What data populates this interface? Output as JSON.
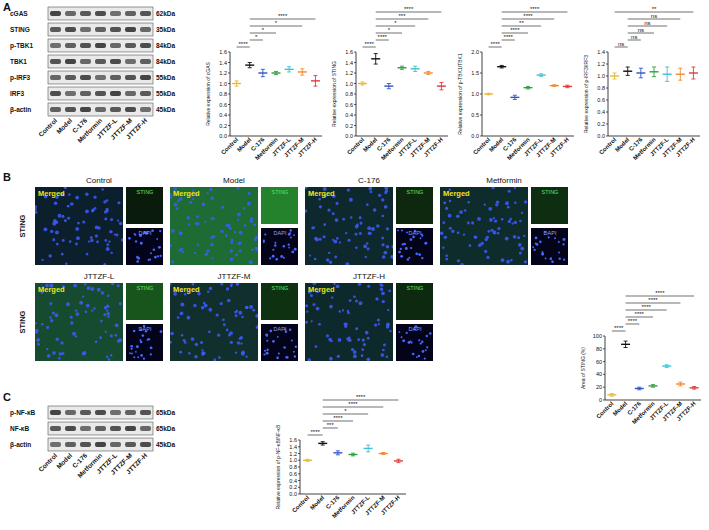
{
  "figure": {
    "panel_labels": [
      "A",
      "B",
      "C"
    ]
  },
  "blot_a": {
    "proteins": [
      "cGAS",
      "STING",
      "p-TBK1",
      "TBK1",
      "p-IRF3",
      "IRF3",
      "β-actin"
    ],
    "sizes": [
      "62kDa",
      "35kDa",
      "84kDa",
      "84kDa",
      "55kDa",
      "55kDa",
      "45kDa"
    ],
    "lanes": [
      "Control",
      "Model",
      "C-176",
      "Metformin",
      "JTTZF-L",
      "JTTZF-M",
      "JTTZF-H"
    ]
  },
  "blot_c": {
    "proteins": [
      "p-NF-κB",
      "NF-κB",
      "β-actin"
    ],
    "sizes": [
      "65kDa",
      "65kDa",
      "45kDa"
    ],
    "lanes": [
      "Control",
      "Model",
      "C-176",
      "Metformin",
      "JTTZF-L",
      "JTTZF-M",
      "JTTZF-H"
    ]
  },
  "images": {
    "row_label": "STING",
    "merged_label": "Merged",
    "channel_labels": [
      "STING",
      "DAPI"
    ],
    "groups": [
      "Control",
      "Model",
      "C-176",
      "Metformin",
      "JTTZF-L",
      "JTTZF-M",
      "JTTZF-H"
    ]
  },
  "chart_data": [
    {
      "type": "dot",
      "y_label": "Relative expression of cGAS",
      "categories": [
        "Control",
        "Model",
        "C-176",
        "Metformin",
        "JTTZF-L",
        "JTTZF-M",
        "JTTZF-H"
      ],
      "values": [
        1.0,
        1.35,
        1.2,
        1.2,
        1.27,
        1.22,
        1.05
      ],
      "errors": [
        0.05,
        0.05,
        0.07,
        0.03,
        0.05,
        0.06,
        0.1
      ],
      "colors": [
        "#e8b83a",
        "#111111",
        "#2f55c8",
        "#2e9e3e",
        "#3ec1d3",
        "#f08a30",
        "#e03a3a"
      ],
      "ylim": [
        0,
        1.6
      ],
      "yticks": [
        {
          "value": 0,
          "label": "0.0"
        },
        0.2,
        0.4,
        0.6,
        0.8,
        {
          "value": 1,
          "label": "1.0"
        },
        1.2,
        1.4,
        1.6
      ],
      "annotations": [
        {
          "from": "Control",
          "to": "Model",
          "label": "****"
        },
        {
          "from": "Model",
          "to": "C-176",
          "label": "*"
        },
        {
          "from": "Model",
          "to": "Metformin",
          "label": "*"
        },
        {
          "from": "Model",
          "to": "JTTZF-M",
          "label": "*"
        },
        {
          "from": "Model",
          "to": "JTTZF-H",
          "label": "****"
        }
      ]
    },
    {
      "type": "dot",
      "y_label": "Relative expression of STING",
      "categories": [
        "Control",
        "Model",
        "C-176",
        "Metformin",
        "JTTZF-L",
        "JTTZF-M",
        "JTTZF-H"
      ],
      "values": [
        1.0,
        1.47,
        0.95,
        1.3,
        1.28,
        1.2,
        0.95
      ],
      "errors": [
        0.03,
        0.1,
        0.05,
        0.03,
        0.05,
        0.03,
        0.07
      ],
      "colors": [
        "#e8b83a",
        "#111111",
        "#2f55c8",
        "#2e9e3e",
        "#3ec1d3",
        "#f08a30",
        "#e03a3a"
      ],
      "ylim": [
        0,
        1.6
      ],
      "yticks": [
        {
          "value": 0,
          "label": "0.0"
        },
        0.2,
        0.4,
        0.6,
        0.8,
        {
          "value": 1,
          "label": "1.0"
        },
        1.2,
        1.4,
        1.6
      ],
      "annotations": [
        {
          "from": "Control",
          "to": "Model",
          "label": "****"
        },
        {
          "from": "Model",
          "to": "C-176",
          "label": "****"
        },
        {
          "from": "Model",
          "to": "Metformin",
          "label": "*"
        },
        {
          "from": "Model",
          "to": "JTTZF-L",
          "label": "*"
        },
        {
          "from": "Model",
          "to": "JTTZF-M",
          "label": "***"
        },
        {
          "from": "Model",
          "to": "JTTZF-H",
          "label": "****"
        }
      ]
    },
    {
      "type": "dot",
      "y_label": "Relative expression of p-TBK1/TBK1",
      "categories": [
        "Control",
        "Model",
        "C-176",
        "Metformin",
        "JTTZF-L",
        "JTTZF-M",
        "JTTZF-H"
      ],
      "values": [
        1.0,
        1.65,
        0.92,
        1.15,
        1.45,
        1.2,
        1.18
      ],
      "errors": [
        0.02,
        0.03,
        0.05,
        0.03,
        0.03,
        0.02,
        0.03
      ],
      "colors": [
        "#e8b83a",
        "#111111",
        "#2f55c8",
        "#2e9e3e",
        "#3ec1d3",
        "#f08a30",
        "#e03a3a"
      ],
      "ylim": [
        0,
        2
      ],
      "yticks": [
        {
          "value": 0,
          "label": "0.0"
        },
        0.5,
        {
          "value": 1,
          "label": "1.0"
        },
        1.5,
        {
          "value": 2,
          "label": "2.0"
        }
      ],
      "annotations": [
        {
          "from": "Control",
          "to": "Model",
          "label": "****"
        },
        {
          "from": "Model",
          "to": "C-176",
          "label": "****"
        },
        {
          "from": "Model",
          "to": "Metformin",
          "label": "****"
        },
        {
          "from": "Model",
          "to": "JTTZF-L",
          "label": "**"
        },
        {
          "from": "Model",
          "to": "JTTZF-M",
          "label": "****"
        },
        {
          "from": "Model",
          "to": "JTTZF-H",
          "label": "****"
        }
      ]
    },
    {
      "type": "dot",
      "y_label": "Relative expression of p-IRF3/IRF3",
      "categories": [
        "Control",
        "Model",
        "C-176",
        "Metformin",
        "JTTZF-L",
        "JTTZF-M",
        "JTTZF-H"
      ],
      "values": [
        1.0,
        1.08,
        1.05,
        1.07,
        1.03,
        1.03,
        1.05
      ],
      "errors": [
        0.05,
        0.07,
        0.08,
        0.08,
        0.12,
        0.1,
        0.1
      ],
      "colors": [
        "#e8b83a",
        "#111111",
        "#2f55c8",
        "#2e9e3e",
        "#3ec1d3",
        "#f08a30",
        "#e03a3a"
      ],
      "ylim": [
        0,
        1.4
      ],
      "yticks": [
        {
          "value": 0,
          "label": "0.0"
        },
        0.2,
        0.4,
        0.6,
        0.8,
        {
          "value": 1,
          "label": "1.0"
        },
        1.2,
        1.4
      ],
      "annotations": [
        {
          "from": "Control",
          "to": "Model",
          "label": "ns"
        },
        {
          "from": "Model",
          "to": "C-176",
          "label": "ns"
        },
        {
          "from": "Model",
          "to": "Metformin",
          "label": "ns"
        },
        {
          "from": "Model",
          "to": "JTTZF-L",
          "label": "ns"
        },
        {
          "from": "Model",
          "to": "JTTZF-M",
          "label": "ns"
        },
        {
          "from": "Control",
          "to": "JTTZF-H",
          "label": "**"
        }
      ]
    },
    {
      "type": "dot",
      "y_label": "Area of STING (%)",
      "categories": [
        "Control",
        "Model",
        "C-176",
        "Metformin",
        "JTTZF-L",
        "JTTZF-M",
        "JTTZF-H"
      ],
      "values": [
        8,
        87,
        18,
        22,
        53,
        25,
        19
      ],
      "errors": [
        2,
        5,
        2,
        2,
        2,
        3,
        2
      ],
      "colors": [
        "#e8b83a",
        "#111111",
        "#2f55c8",
        "#2e9e3e",
        "#3ec1d3",
        "#f08a30",
        "#e03a3a"
      ],
      "ylim": [
        0,
        100
      ],
      "yticks": [
        0,
        20,
        40,
        60,
        80,
        100
      ],
      "annotations": [
        {
          "from": "Control",
          "to": "Model",
          "label": "****"
        },
        {
          "from": "Model",
          "to": "C-176",
          "label": "****"
        },
        {
          "from": "Model",
          "to": "Metformin",
          "label": "****"
        },
        {
          "from": "Model",
          "to": "JTTZF-L",
          "label": "****"
        },
        {
          "from": "Model",
          "to": "JTTZF-M",
          "label": "****"
        },
        {
          "from": "Model",
          "to": "JTTZF-H",
          "label": "****"
        }
      ]
    },
    {
      "type": "dot",
      "y_label": "Relative expression of p-NF-κB/NF-κB",
      "categories": [
        "Control",
        "Model",
        "C-176",
        "Metformin",
        "JTTZF-L",
        "JTTZF-M",
        "JTTZF-H"
      ],
      "values": [
        1.0,
        1.5,
        1.22,
        1.17,
        1.35,
        1.2,
        0.98
      ],
      "errors": [
        0.03,
        0.05,
        0.06,
        0.04,
        0.1,
        0.03,
        0.05
      ],
      "colors": [
        "#e8b83a",
        "#111111",
        "#2f55c8",
        "#2e9e3e",
        "#3ec1d3",
        "#f08a30",
        "#e03a3a"
      ],
      "ylim": [
        0,
        1.6
      ],
      "yticks": [
        {
          "value": 0,
          "label": "0.0"
        },
        0.2,
        0.4,
        0.6,
        0.8,
        {
          "value": 1,
          "label": "1.0"
        },
        1.2,
        1.4,
        1.6
      ],
      "annotations": [
        {
          "from": "Control",
          "to": "Model",
          "label": "****"
        },
        {
          "from": "Model",
          "to": "C-176",
          "label": "***"
        },
        {
          "from": "Model",
          "to": "Metformin",
          "label": "****"
        },
        {
          "from": "Model",
          "to": "JTTZF-L",
          "label": "*"
        },
        {
          "from": "Model",
          "to": "JTTZF-M",
          "label": "****"
        },
        {
          "from": "Model",
          "to": "JTTZF-H",
          "label": "****"
        }
      ]
    }
  ]
}
